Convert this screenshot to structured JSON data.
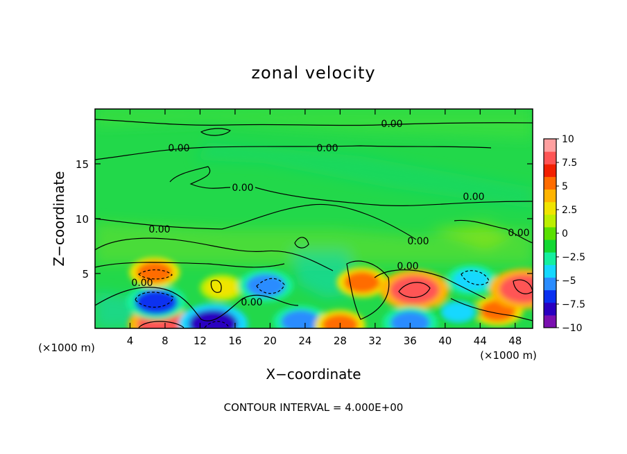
{
  "chart_data": {
    "type": "heatmap",
    "title": "zonal velocity",
    "xlabel": "X−coordinate",
    "ylabel": "Z−coordinate",
    "x_unit_left": "(×1000 m)",
    "x_unit_right": "(×1000 m)",
    "xlim": [
      0,
      50
    ],
    "ylim": [
      0,
      20
    ],
    "x_ticks": [
      4,
      8,
      12,
      16,
      20,
      24,
      28,
      32,
      36,
      40,
      44,
      48
    ],
    "y_ticks": [
      5,
      10,
      15
    ],
    "colorbar": {
      "labels": [
        "10",
        "7.5",
        "5",
        "2.5",
        "0",
        "−2.5",
        "−5",
        "−7.5",
        "−10"
      ],
      "range": [
        -10,
        10
      ],
      "colors": [
        "#7a10b0",
        "#2a00c0",
        "#0a30f0",
        "#2a8cff",
        "#14d8ff",
        "#14ef9e",
        "#12d832",
        "#5ae000",
        "#bcef00",
        "#f0e400",
        "#ffb400",
        "#ff6c00",
        "#f22000",
        "#ff5555",
        "#ffa0a0"
      ]
    },
    "contour_label": "0.00",
    "contour_interval": "CONTOUR INTERVAL = 4.000E+00",
    "features": [
      {
        "x": 7.5,
        "z": 0.4,
        "value": 8,
        "label": ""
      },
      {
        "x": 13.5,
        "z": 0.4,
        "value": -9,
        "label": ""
      },
      {
        "x": 7,
        "z": 2.4,
        "value": -7,
        "label": ""
      },
      {
        "x": 6.8,
        "z": 5.1,
        "value": 5,
        "label": ""
      },
      {
        "x": 14.5,
        "z": 3.7,
        "value": 3.5,
        "label": ""
      },
      {
        "x": 19.5,
        "z": 3.9,
        "value": -6,
        "label": ""
      },
      {
        "x": 23.5,
        "z": 0.6,
        "value": -6,
        "label": ""
      },
      {
        "x": 28,
        "z": 0.3,
        "value": 5,
        "label": ""
      },
      {
        "x": 30.5,
        "z": 4.2,
        "value": 5,
        "label": ""
      },
      {
        "x": 36.5,
        "z": 3.5,
        "value": 9,
        "label": ""
      },
      {
        "x": 36,
        "z": 0.5,
        "value": -6,
        "label": ""
      },
      {
        "x": 43,
        "z": 4.4,
        "value": -5,
        "label": ""
      },
      {
        "x": 46,
        "z": 1.6,
        "value": 5,
        "label": ""
      },
      {
        "x": 49,
        "z": 3.6,
        "value": 9,
        "label": ""
      },
      {
        "x": 41.5,
        "z": 1.5,
        "value": -4,
        "label": ""
      }
    ],
    "grid": false
  }
}
